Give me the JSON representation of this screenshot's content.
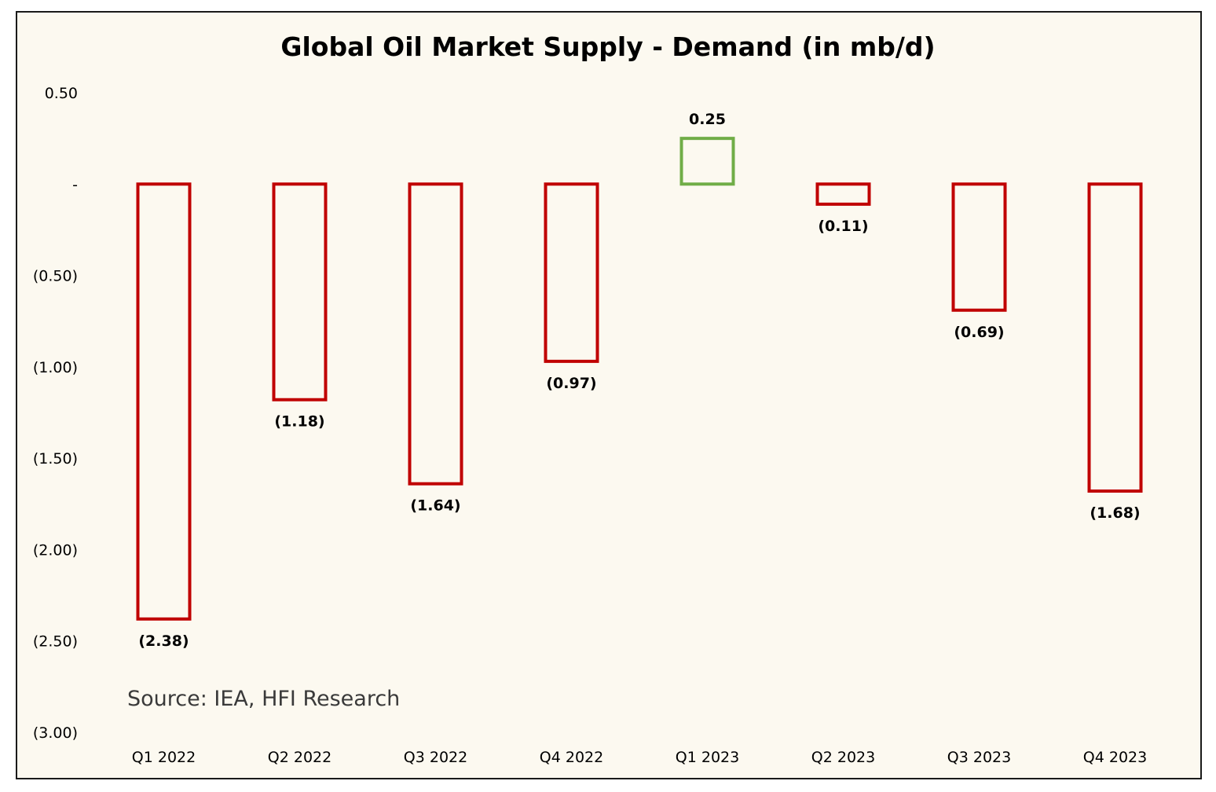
{
  "chart_data": {
    "type": "bar",
    "title": "Global Oil Market Supply - Demand (in mb/d)",
    "source": "Source: IEA, HFI Research",
    "categories": [
      "Q1 2022",
      "Q2 2022",
      "Q3 2022",
      "Q4 2022",
      "Q1 2023",
      "Q2 2023",
      "Q3 2023",
      "Q4 2023"
    ],
    "values": [
      -2.38,
      -1.18,
      -1.64,
      -0.97,
      0.25,
      -0.11,
      -0.69,
      -1.68
    ],
    "data_labels": [
      "(2.38)",
      "(1.18)",
      "(1.64)",
      "(0.97)",
      "0.25",
      "(0.11)",
      "(0.69)",
      "(1.68)"
    ],
    "ylim": [
      -3.0,
      0.5
    ],
    "yticks": [
      0.5,
      0.0,
      -0.5,
      -1.0,
      -1.5,
      -2.0,
      -2.5,
      -3.0
    ],
    "ytick_labels": [
      "0.50",
      "-",
      "(0.50)",
      "(1.00)",
      "(1.50)",
      "(2.00)",
      "(2.50)",
      "(3.00)"
    ],
    "grid": false,
    "legend": "none",
    "colors": {
      "negative": "#c00000",
      "positive": "#70ad47",
      "background": "#fcf9f0",
      "frame": "#1a1a1a"
    }
  }
}
